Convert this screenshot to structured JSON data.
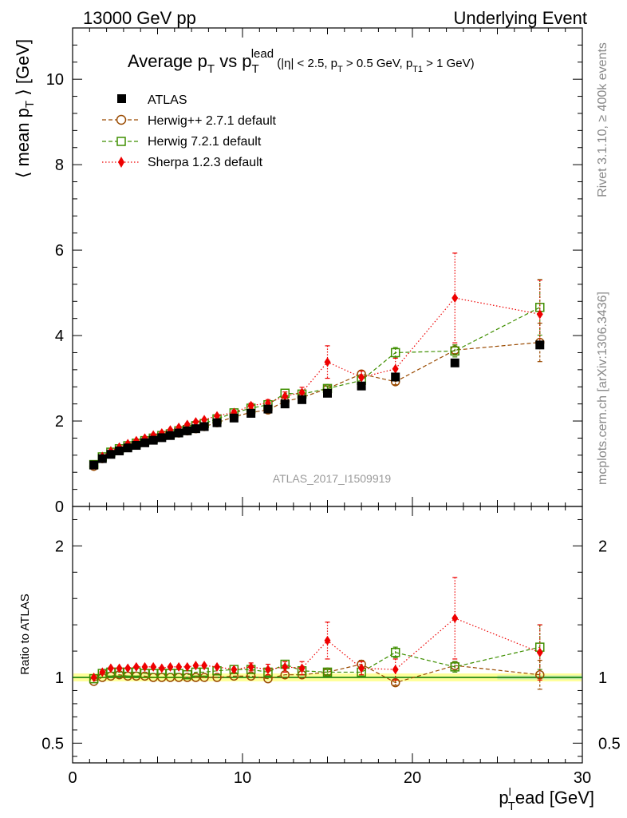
{
  "header": {
    "left": "13000 GeV pp",
    "right": "Underlying Event"
  },
  "side": {
    "rivet": "Rivet 3.1.10, ≥ 400k events",
    "mcplots": "mcplots.cern.ch [arXiv:1306.3436]"
  },
  "watermark": "ATLAS_2017_I1509919",
  "title": {
    "main_a": "Average p",
    "main_a_sub": "T",
    "main_b": " vs p",
    "main_b_sub": "T",
    "main_b_sup": "lead",
    "cuts_a": " (|η| < 2.5, p",
    "cuts_a_sub": "T",
    "cuts_b": " > 0.5 GeV, p",
    "cuts_b_sub": "T1",
    "cuts_c": " > 1 GeV)"
  },
  "colors": {
    "atlas": "#000000",
    "herwigpp": "#9a4a00",
    "herwig7": "#3f8f00",
    "sherpa": "#ee0000",
    "band_outer": "#ffff99",
    "band_inner": "#cceeaa",
    "ratio_line": "#007700"
  },
  "chart_data": [
    {
      "type": "scatter",
      "panel": "main",
      "ylabel_a": "⟨ mean p",
      "ylabel_sub": "T",
      "ylabel_b": " ⟩ [GeV]",
      "xlim": [
        0,
        30
      ],
      "ylim": [
        0,
        11.2
      ],
      "xticks": [
        0,
        10,
        20,
        30
      ],
      "yticks": [
        0,
        2,
        4,
        6,
        8,
        10
      ],
      "x": [
        1.25,
        1.75,
        2.25,
        2.75,
        3.25,
        3.75,
        4.25,
        4.75,
        5.25,
        5.75,
        6.25,
        6.75,
        7.25,
        7.75,
        8.5,
        9.5,
        10.5,
        11.5,
        12.5,
        13.5,
        15.0,
        17.0,
        19.0,
        22.5,
        27.5
      ],
      "series": [
        {
          "name": "ATLAS",
          "key": "atlas",
          "marker": "square-filled",
          "values": [
            0.97,
            1.12,
            1.22,
            1.3,
            1.37,
            1.43,
            1.49,
            1.55,
            1.61,
            1.66,
            1.72,
            1.77,
            1.82,
            1.87,
            1.96,
            2.07,
            2.18,
            2.28,
            2.4,
            2.5,
            2.65,
            2.82,
            3.03,
            3.36,
            3.78
          ]
        },
        {
          "name": "Herwig++ 2.7.1 default",
          "key": "herwigpp",
          "marker": "circle-open",
          "dash": "5,3",
          "values": [
            0.94,
            1.12,
            1.23,
            1.32,
            1.39,
            1.45,
            1.51,
            1.56,
            1.62,
            1.67,
            1.72,
            1.77,
            1.82,
            1.87,
            1.96,
            2.1,
            2.2,
            2.26,
            2.46,
            2.55,
            2.76,
            3.1,
            2.92,
            3.66,
            3.84
          ],
          "errors": [
            0,
            0,
            0,
            0,
            0,
            0,
            0,
            0,
            0,
            0,
            0,
            0,
            0,
            0,
            0,
            0,
            0,
            0,
            0,
            0,
            0.05,
            0.08,
            0.07,
            0.12,
            0.45
          ]
        },
        {
          "name": "Herwig 7.2.1 default",
          "key": "herwig7",
          "marker": "square-open",
          "dash": "5,3",
          "values": [
            0.98,
            1.16,
            1.27,
            1.35,
            1.42,
            1.48,
            1.54,
            1.6,
            1.66,
            1.7,
            1.77,
            1.8,
            1.89,
            1.94,
            2.05,
            2.19,
            2.3,
            2.38,
            2.65,
            2.63,
            2.76,
            2.95,
            3.6,
            3.64,
            4.66
          ],
          "errors": [
            0,
            0,
            0,
            0,
            0,
            0,
            0,
            0,
            0,
            0,
            0,
            0,
            0,
            0,
            0,
            0,
            0,
            0,
            0,
            0,
            0.06,
            0.08,
            0.12,
            0.14,
            0.65
          ]
        },
        {
          "name": "Sherpa 1.2.3 default",
          "key": "sherpa",
          "marker": "diamond-filled",
          "dash": "1.5,2.5",
          "values": [
            0.97,
            1.17,
            1.3,
            1.39,
            1.47,
            1.54,
            1.6,
            1.67,
            1.72,
            1.79,
            1.85,
            1.92,
            1.98,
            2.03,
            2.12,
            2.2,
            2.36,
            2.42,
            2.58,
            2.67,
            3.38,
            3.02,
            3.22,
            4.88,
            4.5
          ],
          "errors": [
            0,
            0,
            0,
            0,
            0,
            0,
            0,
            0,
            0,
            0,
            0,
            0,
            0,
            0,
            0,
            0.05,
            0.06,
            0.08,
            0.1,
            0.12,
            0.38,
            0.15,
            0.25,
            1.05,
            0.8
          ]
        }
      ],
      "legend_position": "top-left"
    },
    {
      "type": "scatter",
      "panel": "ratio",
      "ylabel": "Ratio to ATLAS",
      "xlabel_a": "p",
      "xlabel_sup": "l",
      "xlabel_sub": "T",
      "xlabel_b": "ead [GeV]",
      "xlim": [
        0,
        30
      ],
      "ylim": [
        0.35,
        2.3
      ],
      "xticks": [
        0,
        10,
        20,
        30
      ],
      "yticks": [
        0.5,
        1,
        2
      ],
      "ytick_labels": [
        "0.5",
        "1",
        "2"
      ],
      "reference": 1.0,
      "band": [
        0.97,
        1.03
      ],
      "series": [
        {
          "name": "Herwig++ 2.7.1 default",
          "key": "herwigpp",
          "values": [
            0.97,
            1.0,
            1.01,
            1.02,
            1.01,
            1.01,
            1.01,
            1.0,
            1.0,
            1.0,
            1.0,
            1.0,
            1.0,
            1.0,
            1.0,
            1.01,
            1.01,
            0.99,
            1.02,
            1.02,
            1.04,
            1.1,
            0.96,
            1.09,
            1.02
          ],
          "errors": [
            0,
            0,
            0,
            0,
            0,
            0,
            0,
            0,
            0,
            0,
            0,
            0,
            0,
            0,
            0,
            0,
            0,
            0,
            0,
            0,
            0.02,
            0.03,
            0.02,
            0.03,
            0.11
          ]
        },
        {
          "name": "Herwig 7.2.1 default",
          "key": "herwig7",
          "values": [
            0.99,
            1.03,
            1.04,
            1.04,
            1.04,
            1.04,
            1.03,
            1.03,
            1.03,
            1.03,
            1.03,
            1.02,
            1.04,
            1.04,
            1.05,
            1.06,
            1.06,
            1.04,
            1.1,
            1.05,
            1.04,
            1.04,
            1.19,
            1.08,
            1.23
          ],
          "errors": [
            0,
            0,
            0,
            0,
            0,
            0,
            0,
            0,
            0,
            0,
            0,
            0,
            0,
            0,
            0,
            0,
            0,
            0,
            0,
            0,
            0.02,
            0.03,
            0.04,
            0.04,
            0.17
          ]
        },
        {
          "name": "Sherpa 1.2.3 default",
          "key": "sherpa",
          "values": [
            1.0,
            1.04,
            1.07,
            1.07,
            1.07,
            1.08,
            1.08,
            1.08,
            1.07,
            1.08,
            1.08,
            1.08,
            1.09,
            1.09,
            1.08,
            1.06,
            1.08,
            1.06,
            1.08,
            1.07,
            1.28,
            1.07,
            1.06,
            1.45,
            1.19
          ],
          "errors": [
            0,
            0,
            0,
            0,
            0,
            0,
            0,
            0,
            0,
            0,
            0,
            0,
            0,
            0,
            0,
            0,
            0.03,
            0.04,
            0.04,
            0.05,
            0.14,
            0.05,
            0.08,
            0.31,
            0.21
          ]
        }
      ]
    }
  ]
}
